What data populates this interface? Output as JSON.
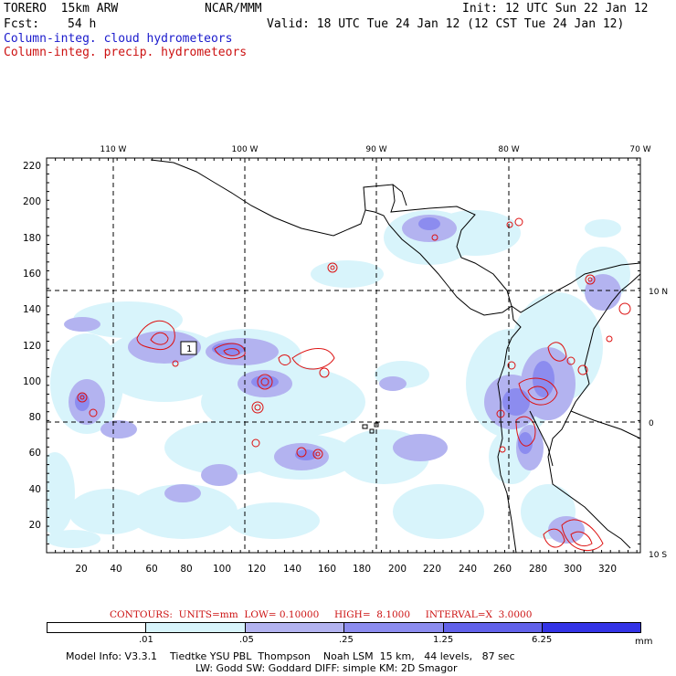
{
  "header": {
    "model_line": "TORERO  15km ARW",
    "org": "NCAR/MMM",
    "init": "Init: 12 UTC Sun 22 Jan 12",
    "fcst_label": "Fcst:",
    "fcst_value": "54 h",
    "valid": "Valid: 18 UTC Tue 24 Jan 12 (12 CST Tue 24 Jan 12)",
    "field_cloud": "Column-integ. cloud hydrometeors",
    "field_precip": "Column-integ. precip. hydrometeors"
  },
  "top_lon_labels": [
    "110 W",
    "100 W",
    "90 W",
    "80 W",
    "70 W"
  ],
  "right_lat_labels": [
    "10 N",
    "0",
    "10 S"
  ],
  "y_ticks": [
    "220",
    "200",
    "180",
    "160",
    "140",
    "120",
    "100",
    "80",
    "60",
    "40",
    "20"
  ],
  "x_ticks": [
    "20",
    "40",
    "60",
    "80",
    "100",
    "120",
    "140",
    "160",
    "180",
    "200",
    "220",
    "240",
    "260",
    "280",
    "300",
    "320"
  ],
  "contour_label": "1",
  "contour_info": {
    "label": "CONTOURS:  UNITS=mm  LOW= 0.10000     HIGH=  8.1000     INTERVAL=X  3.0000"
  },
  "colorbar": {
    "labels": [
      ".01",
      ".05",
      ".25",
      "1.25",
      "6.25"
    ],
    "unit": "mm",
    "colors": [
      "#ffffff",
      "#d8f4fb",
      "#b3b3f0",
      "#8c8cef",
      "#6161ea",
      "#3333e6"
    ]
  },
  "model_info": {
    "line1": "Model Info: V3.3.1    Tiedtke YSU PBL  Thompson    Noah LSM  15 km,   44 levels,   87 sec",
    "line2": "LW: Godd SW: Goddard DIFF: simple KM: 2D Smagor"
  },
  "colors": {
    "cloud_text": "#1a1acc",
    "precip_text": "#cc1111",
    "shade_lightest": "#d8f4fb",
    "shade_light": "#b3b3f0",
    "shade_mid": "#8c8cef",
    "contour": "#dd1111"
  }
}
